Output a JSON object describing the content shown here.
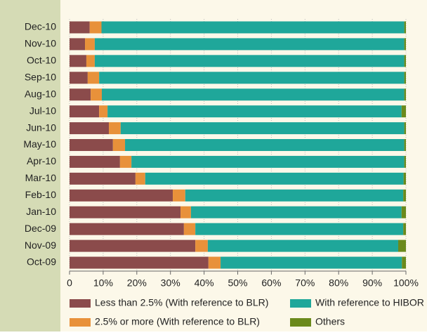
{
  "chart_data": {
    "type": "stacked-bar-horizontal",
    "categories": [
      "Dec-10",
      "Nov-10",
      "Oct-10",
      "Sep-10",
      "Aug-10",
      "Jul-10",
      "Jun-10",
      "May-10",
      "Apr-10",
      "Mar-10",
      "Feb-10",
      "Jan-10",
      "Dec-09",
      "Nov-09",
      "Oct-09"
    ],
    "series": [
      {
        "name": "Less than 2.5% (With reference to BLR)",
        "color": "#8b4b4b",
        "values": [
          6,
          4.6,
          5,
          5.4,
          6.3,
          8.8,
          11.7,
          12.9,
          15,
          19.6,
          30.7,
          33,
          34,
          37.4,
          41.3
        ]
      },
      {
        "name": "2.5% or more (With reference to BLR)",
        "color": "#e8913a",
        "values": [
          3.5,
          2.9,
          2.5,
          3.4,
          3.3,
          2.5,
          3.5,
          3.6,
          3.4,
          2.9,
          3.7,
          3.1,
          3.4,
          3.7,
          3.6
        ]
      },
      {
        "name": "With reference to HIBOR",
        "color": "#1fa79a",
        "values": [
          90,
          92,
          92,
          90.7,
          89.9,
          87.4,
          84.3,
          83,
          81.1,
          76.8,
          64.8,
          62.6,
          61.8,
          56.6,
          53.9
        ]
      },
      {
        "name": "Others",
        "color": "#6b8a1c",
        "values": [
          0.5,
          0.5,
          0.5,
          0.5,
          0.5,
          1.3,
          0.5,
          0.5,
          0.5,
          0.7,
          0.8,
          1.3,
          0.8,
          2.3,
          1.2
        ]
      }
    ],
    "xlim": [
      0,
      100
    ],
    "xticks": [
      0,
      {
        "value": 10,
        "label": "10%"
      },
      {
        "value": 20,
        "label": "20%"
      },
      {
        "value": 30,
        "label": "30%"
      },
      {
        "value": 40,
        "label": "40%"
      },
      {
        "value": 50,
        "label": "50%"
      },
      {
        "value": 60,
        "label": "60%"
      },
      {
        "value": 70,
        "label": "70%"
      },
      {
        "value": 80,
        "label": "80%"
      },
      {
        "value": 90,
        "label": "90%"
      },
      {
        "value": 100,
        "label": "100%"
      }
    ],
    "grid": true
  }
}
